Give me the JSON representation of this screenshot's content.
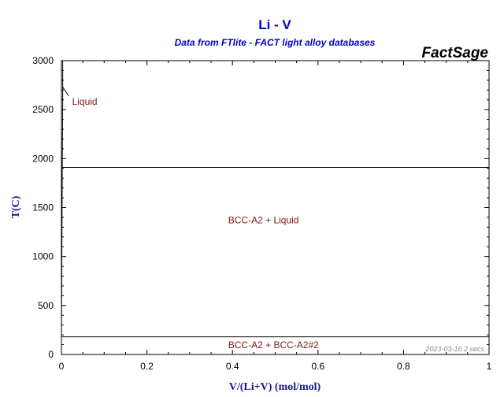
{
  "title": "Li - V",
  "subtitle": "Data from FTlite - FACT light alloy databases",
  "brand": "FactSage",
  "stamp": "2023-03-16  2 secs",
  "colors": {
    "title": "#0000cc",
    "subtitle": "#0000cc",
    "axis_title": "#1a1a8c",
    "region_label": "#7a1a1a",
    "lines": "#000000"
  },
  "chart_data": {
    "type": "line",
    "title": "Li - V",
    "subtitle": "Data from FTlite - FACT light alloy databases",
    "xlabel": "V/(Li+V) (mol/mol)",
    "ylabel": "T(C)",
    "xlim": [
      0,
      1
    ],
    "ylim": [
      0,
      3000
    ],
    "x_ticks": [
      0,
      0.2,
      0.4,
      0.6,
      0.8,
      1
    ],
    "y_ticks": [
      0,
      500,
      1000,
      1500,
      2000,
      2500,
      3000
    ],
    "x_tick_labels": [
      "0",
      "0.2",
      "0.4",
      "0.6",
      "0.8",
      "1"
    ],
    "y_tick_labels": [
      "0",
      "500",
      "1000",
      "1500",
      "2000",
      "2500",
      "3000"
    ],
    "grid": false,
    "series": [
      {
        "x": [
          0,
          1
        ],
        "y": [
          1910,
          1910
        ]
      },
      {
        "x": [
          0,
          1
        ],
        "y": [
          180,
          180
        ]
      },
      {
        "x": [
          0,
          0.002,
          0.003,
          0.003
        ],
        "y": [
          180,
          1910,
          2600,
          3000
        ]
      }
    ],
    "regions": [
      {
        "label": "Liquid",
        "x": 0.025,
        "y": 2550
      },
      {
        "label": "BCC-A2 + Liquid",
        "x": 0.39,
        "y": 1340
      },
      {
        "label": "BCC-A2 + BCC-A2#2",
        "x": 0.39,
        "y": 65
      }
    ],
    "label_leaders": [
      {
        "x": [
          0.003,
          0.017
        ],
        "y": [
          2730,
          2640
        ]
      }
    ]
  }
}
